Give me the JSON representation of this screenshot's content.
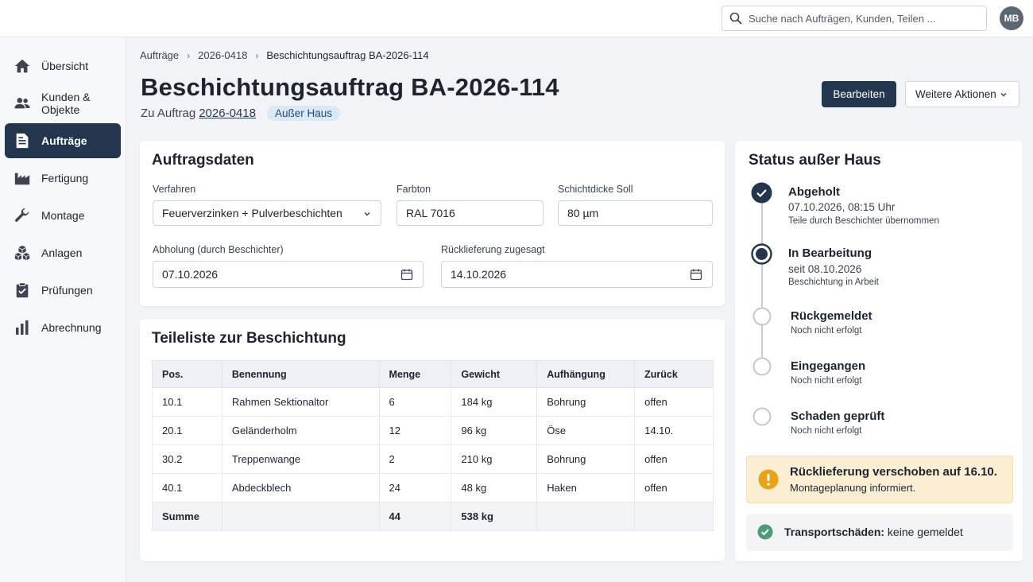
{
  "search": {
    "placeholder": "Suche nach Aufträgen, Kunden, Teilen ..."
  },
  "user": {
    "initials": "MB"
  },
  "sidebar": {
    "items": [
      {
        "label": "Übersicht",
        "icon": "home-icon"
      },
      {
        "label": "Kunden & Objekte",
        "icon": "people-icon"
      },
      {
        "label": "Aufträge",
        "icon": "document-icon",
        "active": true
      },
      {
        "label": "Fertigung",
        "icon": "factory-icon"
      },
      {
        "label": "Montage",
        "icon": "wrench-icon"
      },
      {
        "label": "Anlagen",
        "icon": "cubes-icon"
      },
      {
        "label": "Prüfungen",
        "icon": "clipboard-check-icon"
      },
      {
        "label": "Abrechnung",
        "icon": "bar-chart-icon"
      }
    ]
  },
  "breadcrumb": [
    "Aufträge",
    "2026-0418",
    "Beschichtungsauftrag BA-2026-114"
  ],
  "header": {
    "title": "Beschichtungsauftrag BA-2026-114",
    "order_prefix": "Zu Auftrag",
    "order_link": "2026-0418",
    "status_badge": "Außer Haus",
    "edit_label": "Bearbeiten",
    "more_label": "Weitere Aktionen"
  },
  "order_data": {
    "title": "Auftragsdaten",
    "process_label": "Verfahren",
    "process_value": "Feuerverzinken + Pulverbeschichten",
    "color_label": "Farbton",
    "color_value": "RAL 7016",
    "thickness_label": "Schichtdicke Soll",
    "thickness_value": "80 µm",
    "pickup_label": "Abholung (durch Beschichter)",
    "pickup_value": "07.10.2026",
    "return_label": "Rücklieferung zugesagt",
    "return_value": "14.10.2026"
  },
  "parts": {
    "title": "Teileliste zur Beschichtung",
    "columns": [
      "Pos.",
      "Benennung",
      "Menge",
      "Gewicht",
      "Aufhängung",
      "Zurück"
    ],
    "rows": [
      [
        "10.1",
        "Rahmen Sektionaltor",
        "6",
        "184 kg",
        "Bohrung",
        "offen"
      ],
      [
        "20.1",
        "Geländerholm",
        "12",
        "96 kg",
        "Öse",
        "14.10."
      ],
      [
        "30.2",
        "Treppenwange",
        "2",
        "210 kg",
        "Bohrung",
        "offen"
      ],
      [
        "40.1",
        "Abdeckblech",
        "24",
        "48 kg",
        "Haken",
        "offen"
      ]
    ],
    "sum": [
      "Summe",
      "",
      "44",
      "538 kg",
      "",
      ""
    ]
  },
  "status": {
    "title": "Status außer Haus",
    "steps": [
      {
        "title": "Abgeholt",
        "sub": "07.10.2026, 08:15 Uhr",
        "note": "Teile durch Beschichter übernommen",
        "state": "done"
      },
      {
        "title": "In Bearbeitung",
        "sub": "seit 08.10.2026",
        "note": "Beschichtung in Arbeit",
        "state": "current"
      },
      {
        "title": "Rückgemeldet",
        "note": "Noch nicht erfolgt",
        "state": "pending"
      },
      {
        "title": "Eingegangen",
        "note": "Noch nicht erfolgt",
        "state": "pending"
      },
      {
        "title": "Schaden geprüft",
        "note": "Noch nicht erfolgt",
        "state": "pending"
      }
    ],
    "alert_title": "Rücklieferung verschoben auf 16.10.",
    "alert_text": "Montageplanung informiert.",
    "transport_label": "Transportschäden:",
    "transport_value": "keine gemeldet"
  },
  "colors": {
    "primary": "#23364d",
    "accent_badge": "#dbe8f5",
    "warning": "#e8a317",
    "success": "#4e9a7a"
  }
}
